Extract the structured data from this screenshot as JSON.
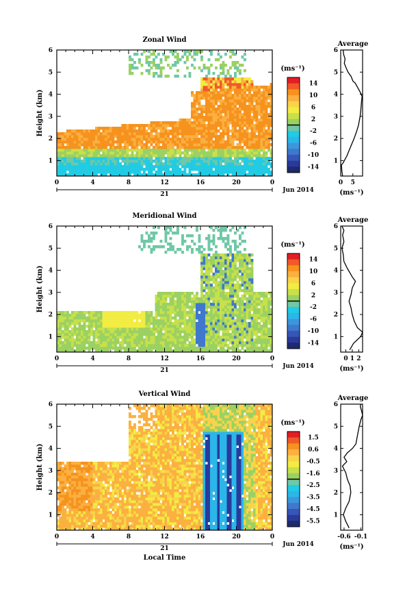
{
  "chart_data": [
    {
      "type": "heatmap",
      "title": "Zonal Wind",
      "ylabel": "Height (km)",
      "xlim": [
        0,
        24
      ],
      "ylim": [
        0.3,
        6
      ],
      "x_ticks": [
        "0",
        "4",
        "8",
        "12",
        "16",
        "20",
        "0"
      ],
      "y_ticks": [
        "1",
        "2",
        "3",
        "4",
        "5",
        "6"
      ],
      "day_label": "21",
      "date_label": "Jun 2014",
      "colorbar": {
        "unit": "(ms⁻¹)",
        "ticks": [
          "14",
          "10",
          "6",
          "2",
          "-2",
          "-6",
          "-10",
          "-14"
        ]
      },
      "average_profile": {
        "title": "Average",
        "xlabel": "(ms⁻¹)",
        "x_ticks": [
          "0",
          "5"
        ],
        "y_ticks": [
          "1",
          "2",
          "3",
          "4",
          "5",
          "6"
        ],
        "xlim": [
          0,
          9
        ],
        "points": [
          [
            0.8,
            0.3
          ],
          [
            0.5,
            0.5
          ],
          [
            0.3,
            0.8
          ],
          [
            1.0,
            0.9
          ],
          [
            2.5,
            1.2
          ],
          [
            4.0,
            1.6
          ],
          [
            5.5,
            2.0
          ],
          [
            6.5,
            2.3
          ],
          [
            7.3,
            2.6
          ],
          [
            8.0,
            3.0
          ],
          [
            8.3,
            3.3
          ],
          [
            8.5,
            3.6
          ],
          [
            8.8,
            3.9
          ],
          [
            8.0,
            4.1
          ],
          [
            7.0,
            4.3
          ],
          [
            6.0,
            4.5
          ],
          [
            5.0,
            4.6
          ],
          [
            4.3,
            4.8
          ],
          [
            3.0,
            5.0
          ],
          [
            2.2,
            5.2
          ],
          [
            1.5,
            5.4
          ],
          [
            1.8,
            5.6
          ],
          [
            1.2,
            5.8
          ],
          [
            1.0,
            6.0
          ]
        ]
      }
    },
    {
      "type": "heatmap",
      "title": "Meridional Wind",
      "ylabel": "Height (km)",
      "xlim": [
        0,
        24
      ],
      "ylim": [
        0.3,
        6
      ],
      "x_ticks": [
        "0",
        "4",
        "8",
        "12",
        "16",
        "20",
        "0"
      ],
      "y_ticks": [
        "1",
        "2",
        "3",
        "4",
        "5",
        "6"
      ],
      "day_label": "21",
      "date_label": "Jun 2014",
      "colorbar": {
        "unit": "(ms⁻¹)",
        "ticks": [
          "14",
          "10",
          "6",
          "2",
          "-2",
          "-6",
          "-10",
          "-14"
        ]
      },
      "average_profile": {
        "title": "Average",
        "xlabel": "(ms⁻¹)",
        "x_ticks": [
          "0",
          "1",
          "2"
        ],
        "y_ticks": [
          "1",
          "2",
          "3",
          "4",
          "5",
          "6"
        ],
        "xlim": [
          -0.8,
          2.6
        ],
        "points": [
          [
            0.6,
            0.4
          ],
          [
            1.2,
            0.7
          ],
          [
            2.3,
            1.0
          ],
          [
            2.6,
            1.2
          ],
          [
            1.8,
            1.4
          ],
          [
            1.3,
            1.7
          ],
          [
            1.0,
            2.0
          ],
          [
            0.8,
            2.3
          ],
          [
            0.5,
            2.6
          ],
          [
            0.8,
            2.9
          ],
          [
            1.0,
            3.2
          ],
          [
            1.5,
            3.5
          ],
          [
            1.0,
            3.7
          ],
          [
            0.6,
            3.9
          ],
          [
            0.2,
            4.1
          ],
          [
            -0.3,
            4.4
          ],
          [
            -0.4,
            4.7
          ],
          [
            -0.6,
            5.0
          ],
          [
            -0.3,
            5.3
          ],
          [
            -0.5,
            5.6
          ],
          [
            -0.3,
            5.8
          ],
          [
            -0.6,
            6.0
          ]
        ]
      }
    },
    {
      "type": "heatmap",
      "title": "Vertical Wind",
      "ylabel": "Height (km)",
      "xlabel": "Local Time",
      "xlim": [
        0,
        24
      ],
      "ylim": [
        0.3,
        6
      ],
      "x_ticks": [
        "0",
        "4",
        "8",
        "12",
        "16",
        "20",
        "0"
      ],
      "y_ticks": [
        "1",
        "2",
        "3",
        "4",
        "5",
        "6"
      ],
      "day_label": "21",
      "date_label": "Jun 2014",
      "colorbar": {
        "unit": "(ms⁻¹)",
        "ticks": [
          "1.5",
          "0.6",
          "-0.5",
          "-1.6",
          "-2.5",
          "-3.5",
          "-4.5",
          "-5.5"
        ]
      },
      "average_profile": {
        "title": "Average",
        "xlabel": "(ms⁻¹)",
        "x_ticks": [
          "-0.6",
          "-0.1"
        ],
        "y_ticks": [
          "1",
          "2",
          "3",
          "4",
          "5",
          "6"
        ],
        "xlim": [
          -0.7,
          -0.05
        ],
        "points": [
          [
            -0.45,
            0.4
          ],
          [
            -0.55,
            0.7
          ],
          [
            -0.62,
            1.0
          ],
          [
            -0.55,
            1.3
          ],
          [
            -0.45,
            1.6
          ],
          [
            -0.4,
            2.0
          ],
          [
            -0.42,
            2.3
          ],
          [
            -0.5,
            2.6
          ],
          [
            -0.55,
            2.9
          ],
          [
            -0.65,
            3.2
          ],
          [
            -0.52,
            3.4
          ],
          [
            -0.6,
            3.6
          ],
          [
            -0.5,
            3.8
          ],
          [
            -0.35,
            4.0
          ],
          [
            -0.25,
            4.2
          ],
          [
            -0.2,
            4.6
          ],
          [
            -0.15,
            5.0
          ],
          [
            -0.1,
            5.3
          ],
          [
            -0.05,
            5.5
          ],
          [
            -0.08,
            5.7
          ],
          [
            -0.12,
            5.9
          ],
          [
            -0.1,
            6.0
          ]
        ]
      }
    }
  ]
}
